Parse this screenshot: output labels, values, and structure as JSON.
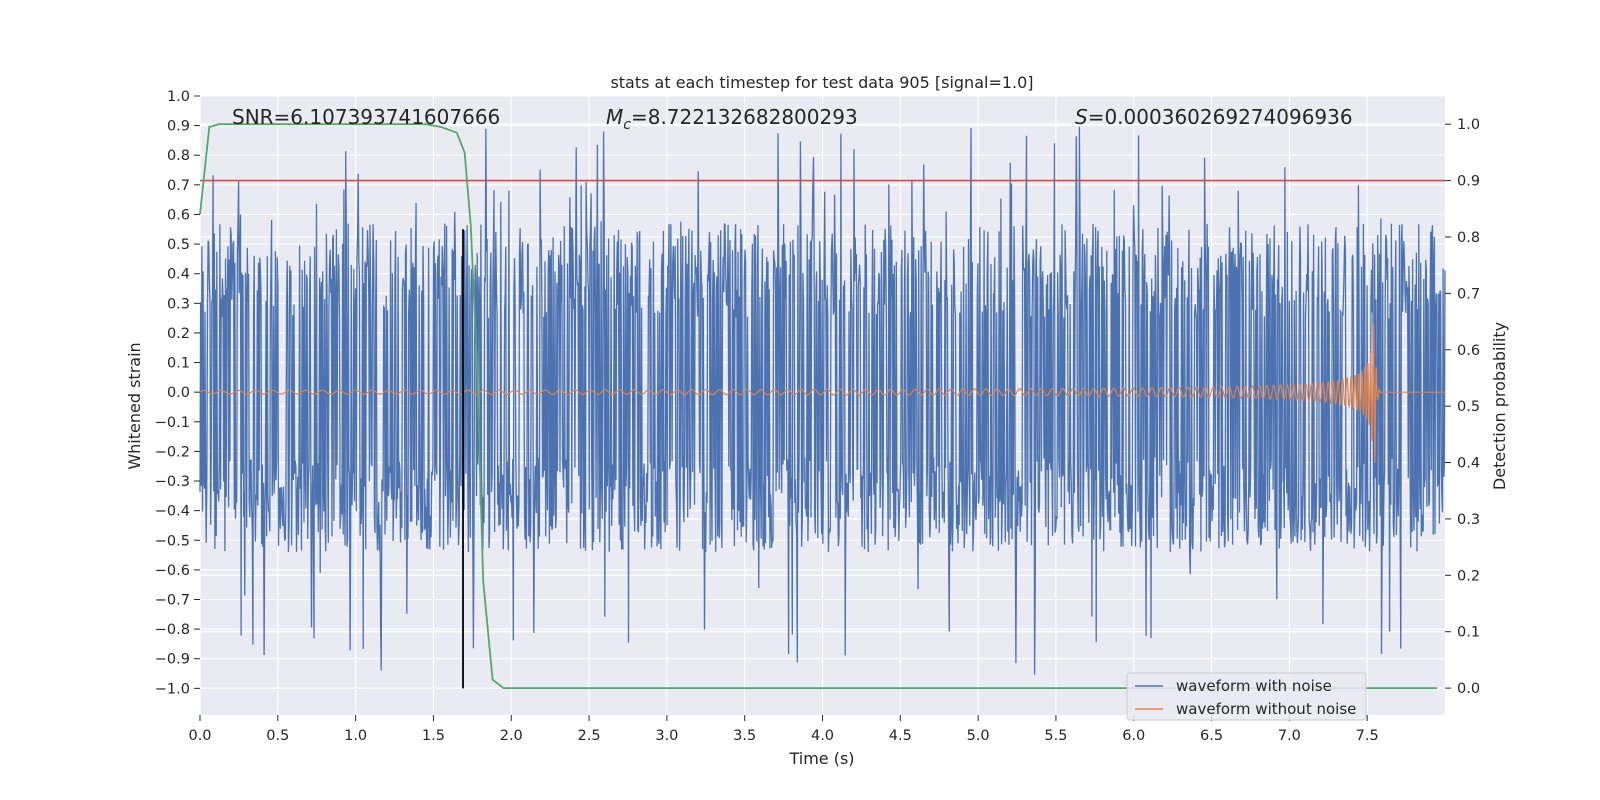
{
  "chart_data": {
    "type": "line",
    "title": "stats at each timestep for test data 905 [signal=1.0]",
    "xlabel": "Time (s)",
    "ylabel_left": "Whitened strain",
    "ylabel_right": "Detection probability",
    "xlim": [
      0.0,
      8.0
    ],
    "ylim_left": [
      -1.09,
      1.0
    ],
    "ylim_right": [
      -0.0477,
      1.05
    ],
    "x_ticks": [
      0.0,
      0.5,
      1.0,
      1.5,
      2.0,
      2.5,
      3.0,
      3.5,
      4.0,
      4.5,
      5.0,
      5.5,
      6.0,
      6.5,
      7.0,
      7.5
    ],
    "x_tick_labels": [
      "0.0",
      "0.5",
      "1.0",
      "1.5",
      "2.0",
      "2.5",
      "3.0",
      "3.5",
      "4.0",
      "4.5",
      "5.0",
      "5.5",
      "6.0",
      "6.5",
      "7.0",
      "7.5"
    ],
    "y_left_ticks": [
      1.0,
      0.9,
      0.8,
      0.7,
      0.6,
      0.5,
      0.4,
      0.3,
      0.2,
      0.1,
      0.0,
      -0.1,
      -0.2,
      -0.3,
      -0.4,
      -0.5,
      -0.6,
      -0.7,
      -0.8,
      -0.9,
      -1.0
    ],
    "y_left_tick_labels": [
      "1.0",
      "0.9",
      "0.8",
      "0.7",
      "0.6",
      "0.5",
      "0.4",
      "0.3",
      "0.2",
      "0.1",
      "0.0",
      "−0.1",
      "−0.2",
      "−0.3",
      "−0.4",
      "−0.5",
      "−0.6",
      "−0.7",
      "−0.8",
      "−0.9",
      "−1.0"
    ],
    "y_right_ticks": [
      1.0,
      0.9,
      0.8,
      0.7,
      0.6,
      0.5,
      0.4,
      0.3,
      0.2,
      0.1,
      0.0
    ],
    "y_right_tick_labels": [
      "1.0",
      "0.9",
      "0.8",
      "0.7",
      "0.6",
      "0.5",
      "0.4",
      "0.3",
      "0.2",
      "0.1",
      "0.0"
    ],
    "annotations": {
      "snr_label": "SNR=6.107393741607666",
      "mc_symbol": "M",
      "mc_subscript": "c",
      "mc_value": "=8.722132682800293",
      "s_symbol": "S",
      "s_value": "=0.000360269274096936"
    },
    "threshold": {
      "axis": "right",
      "value": 0.9,
      "color": "#c44e52"
    },
    "marker_line": {
      "x": 1.69,
      "y_from": -1.0,
      "y_to": 0.55,
      "color": "#000000"
    },
    "series": [
      {
        "name": "waveform with noise",
        "axis": "left",
        "color": "#4c72b0",
        "kind": "noise",
        "band_low": -0.22,
        "band_high": 0.25,
        "max": 0.9,
        "min": -0.98,
        "t_start": 0.0,
        "t_end": 8.0
      },
      {
        "name": "waveform without noise",
        "axis": "left",
        "color": "#dd8452",
        "kind": "chirp",
        "t_merge": 7.55,
        "amp_start": 0.006,
        "amp_peak": 0.24,
        "f_start": 9,
        "f_peak": 55
      },
      {
        "name": "detection probability",
        "axis": "right",
        "color": "#55a868",
        "kind": "line",
        "x": [
          0.0,
          0.06,
          0.12,
          0.2,
          0.4,
          0.8,
          1.2,
          1.45,
          1.55,
          1.65,
          1.7,
          1.74,
          1.78,
          1.82,
          1.88,
          1.95,
          2.1,
          3.0,
          5.0,
          7.0,
          7.95
        ],
        "y": [
          0.84,
          0.995,
          1.0,
          1.0,
          1.0,
          1.0,
          1.0,
          1.0,
          0.995,
          0.985,
          0.95,
          0.82,
          0.57,
          0.19,
          0.015,
          0.0,
          0.0,
          0.0,
          0.0,
          0.0,
          0.0
        ]
      }
    ],
    "legend": {
      "position": "lower-right",
      "entries": [
        {
          "label": "waveform with noise",
          "color": "#4c72b0"
        },
        {
          "label": "waveform without noise",
          "color": "#dd8452"
        }
      ]
    },
    "grid": true,
    "style": {
      "plot_background": "#eaeaf2",
      "grid_color": "#ffffff"
    }
  }
}
